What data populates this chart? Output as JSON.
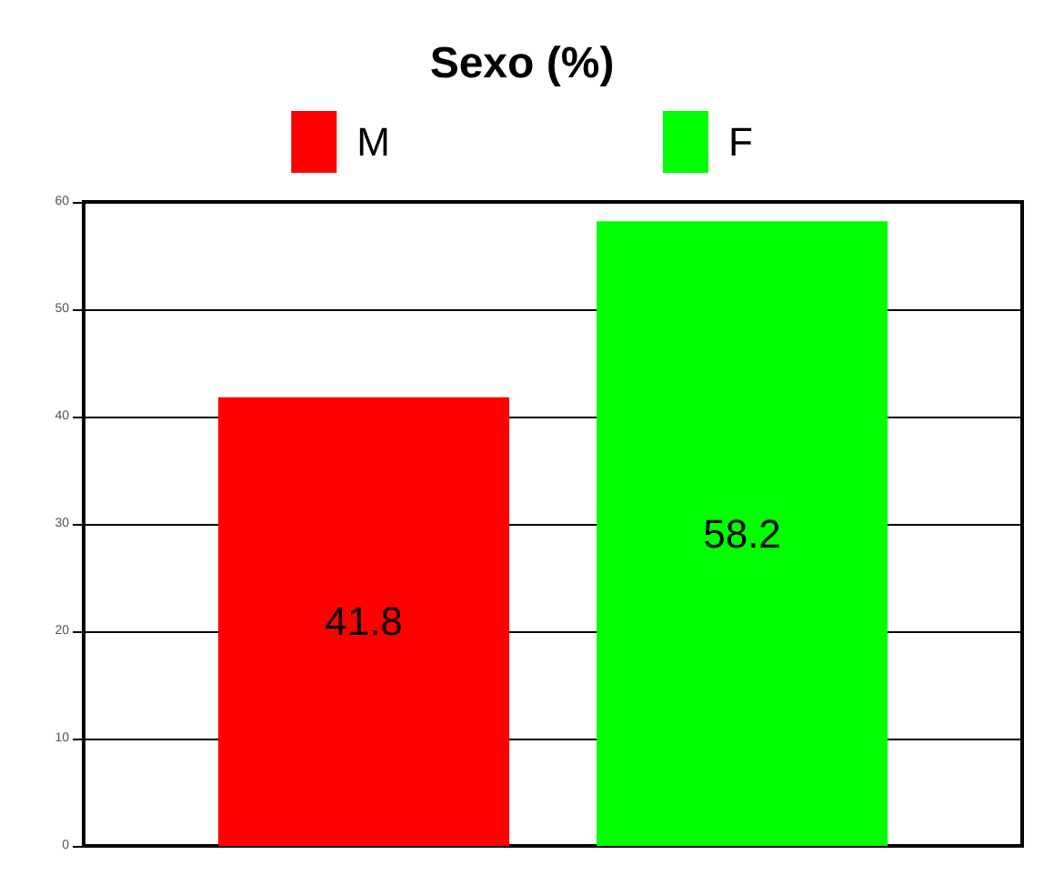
{
  "chart_data": {
    "type": "bar",
    "title": "Sexo (%)",
    "categories": [
      null
    ],
    "series": [
      {
        "name": "M",
        "color": "#ff0000",
        "values": [
          41.8
        ]
      },
      {
        "name": "F",
        "color": "#00ff00",
        "values": [
          58.2
        ]
      }
    ],
    "ylim": [
      0,
      60
    ],
    "yticks": [
      0,
      10,
      20,
      30,
      40,
      50,
      60
    ],
    "grid": "y",
    "legend": "top",
    "data_labels": true
  }
}
